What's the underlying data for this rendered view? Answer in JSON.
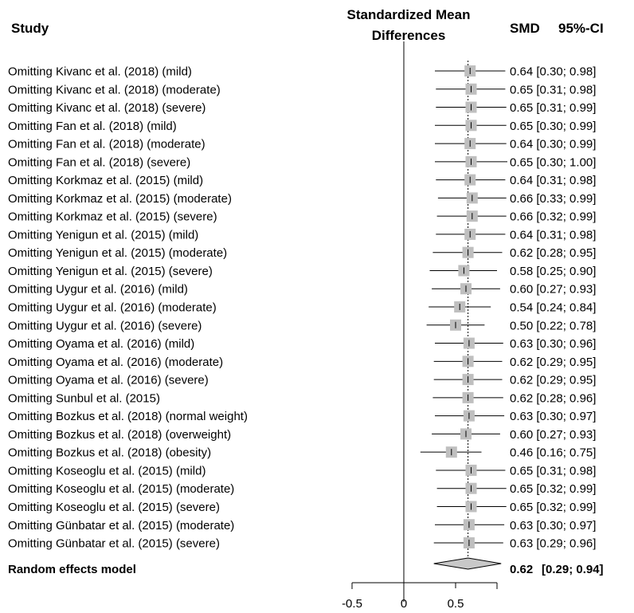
{
  "chart_data": {
    "type": "forest",
    "headers": {
      "study": "Study",
      "plot_title_line1": "Standardized Mean",
      "plot_title_line2": "Differences",
      "smd": "SMD",
      "ci": "95%-CI"
    },
    "xlim": [
      -0.5,
      0.9
    ],
    "x_ticks": [
      -0.5,
      0,
      0.5
    ],
    "x_tick_labels": [
      "-0.5",
      "0",
      "0.5"
    ],
    "reference_line": 0,
    "pooled_line": 0.62,
    "rows": [
      {
        "study": "Omitting Kivanc et al. (2018) (mild)",
        "smd": 0.64,
        "lower": 0.3,
        "upper": 0.98,
        "text": "0.64 [0.30; 0.98]"
      },
      {
        "study": "Omitting Kivanc et al. (2018) (moderate)",
        "smd": 0.65,
        "lower": 0.31,
        "upper": 0.98,
        "text": "0.65 [0.31; 0.98]"
      },
      {
        "study": "Omitting Kivanc et al. (2018) (severe)",
        "smd": 0.65,
        "lower": 0.31,
        "upper": 0.99,
        "text": "0.65 [0.31; 0.99]"
      },
      {
        "study": "Omitting Fan et al. (2018) (mild)",
        "smd": 0.65,
        "lower": 0.3,
        "upper": 0.99,
        "text": "0.65 [0.30; 0.99]"
      },
      {
        "study": "Omitting Fan et al. (2018) (moderate)",
        "smd": 0.64,
        "lower": 0.3,
        "upper": 0.99,
        "text": "0.64 [0.30; 0.99]"
      },
      {
        "study": "Omitting Fan et al. (2018) (severe)",
        "smd": 0.65,
        "lower": 0.3,
        "upper": 1.0,
        "text": "0.65 [0.30; 1.00]"
      },
      {
        "study": "Omitting Korkmaz et al. (2015) (mild)",
        "smd": 0.64,
        "lower": 0.31,
        "upper": 0.98,
        "text": "0.64 [0.31; 0.98]"
      },
      {
        "study": "Omitting Korkmaz et al. (2015) (moderate)",
        "smd": 0.66,
        "lower": 0.33,
        "upper": 0.99,
        "text": "0.66 [0.33; 0.99]"
      },
      {
        "study": "Omitting Korkmaz et al. (2015) (severe)",
        "smd": 0.66,
        "lower": 0.32,
        "upper": 0.99,
        "text": "0.66 [0.32; 0.99]"
      },
      {
        "study": "Omitting Yenigun et al. (2015) (mild)",
        "smd": 0.64,
        "lower": 0.31,
        "upper": 0.98,
        "text": "0.64 [0.31; 0.98]"
      },
      {
        "study": "Omitting Yenigun et al. (2015) (moderate)",
        "smd": 0.62,
        "lower": 0.28,
        "upper": 0.95,
        "text": "0.62 [0.28; 0.95]"
      },
      {
        "study": "Omitting Yenigun et al. (2015) (severe)",
        "smd": 0.58,
        "lower": 0.25,
        "upper": 0.9,
        "text": "0.58 [0.25; 0.90]"
      },
      {
        "study": "Omitting Uygur et al. (2016) (mild)",
        "smd": 0.6,
        "lower": 0.27,
        "upper": 0.93,
        "text": "0.60 [0.27; 0.93]"
      },
      {
        "study": "Omitting Uygur et al. (2016) (moderate)",
        "smd": 0.54,
        "lower": 0.24,
        "upper": 0.84,
        "text": "0.54 [0.24; 0.84]"
      },
      {
        "study": "Omitting Uygur et al. (2016) (severe)",
        "smd": 0.5,
        "lower": 0.22,
        "upper": 0.78,
        "text": "0.50 [0.22; 0.78]"
      },
      {
        "study": "Omitting Oyama et al. (2016) (mild)",
        "smd": 0.63,
        "lower": 0.3,
        "upper": 0.96,
        "text": "0.63 [0.30; 0.96]"
      },
      {
        "study": "Omitting Oyama et al. (2016) (moderate)",
        "smd": 0.62,
        "lower": 0.29,
        "upper": 0.95,
        "text": "0.62 [0.29; 0.95]"
      },
      {
        "study": "Omitting Oyama et al. (2016) (severe)",
        "smd": 0.62,
        "lower": 0.29,
        "upper": 0.95,
        "text": "0.62 [0.29; 0.95]"
      },
      {
        "study": "Omitting Sunbul et al. (2015)",
        "smd": 0.62,
        "lower": 0.28,
        "upper": 0.96,
        "text": "0.62 [0.28; 0.96]"
      },
      {
        "study": "Omitting Bozkus et al. (2018) (normal weight)",
        "smd": 0.63,
        "lower": 0.3,
        "upper": 0.97,
        "text": "0.63 [0.30; 0.97]"
      },
      {
        "study": "Omitting Bozkus et al. (2018) (overweight)",
        "smd": 0.6,
        "lower": 0.27,
        "upper": 0.93,
        "text": "0.60 [0.27; 0.93]"
      },
      {
        "study": "Omitting Bozkus et al. (2018) (obesity)",
        "smd": 0.46,
        "lower": 0.16,
        "upper": 0.75,
        "text": "0.46 [0.16; 0.75]"
      },
      {
        "study": "Omitting Koseoglu et al. (2015) (mild)",
        "smd": 0.65,
        "lower": 0.31,
        "upper": 0.98,
        "text": "0.65 [0.31; 0.98]"
      },
      {
        "study": "Omitting Koseoglu et al. (2015) (moderate)",
        "smd": 0.65,
        "lower": 0.32,
        "upper": 0.99,
        "text": "0.65 [0.32; 0.99]"
      },
      {
        "study": "Omitting Koseoglu et al. (2015) (severe)",
        "smd": 0.65,
        "lower": 0.32,
        "upper": 0.99,
        "text": "0.65 [0.32; 0.99]"
      },
      {
        "study": "Omitting Günbatar et al. (2015) (moderate)",
        "smd": 0.63,
        "lower": 0.3,
        "upper": 0.97,
        "text": "0.63 [0.30; 0.97]"
      },
      {
        "study": "Omitting Günbatar et al. (2015) (severe)",
        "smd": 0.63,
        "lower": 0.29,
        "upper": 0.96,
        "text": "0.63 [0.29; 0.96]"
      }
    ],
    "pooled": {
      "label": "Random effects model",
      "smd": 0.62,
      "lower": 0.29,
      "upper": 0.94,
      "text_estimate": "0.62",
      "text_ci": "[0.29; 0.94]"
    },
    "colors": {
      "box": "#bfbfbf",
      "diamond": "#c8c8c8",
      "line": "#000000"
    }
  }
}
